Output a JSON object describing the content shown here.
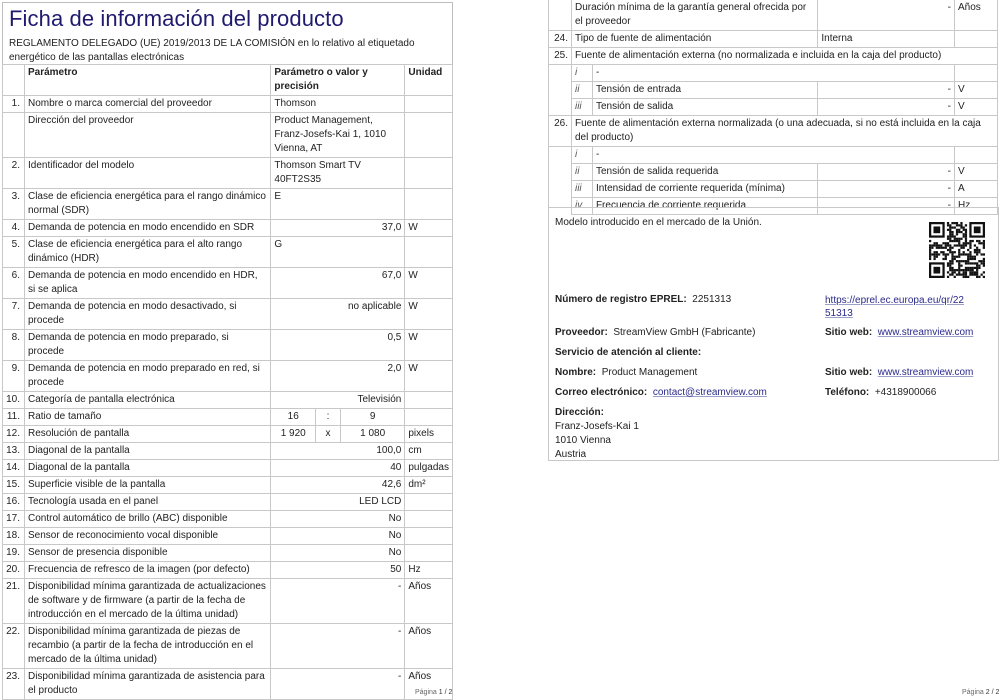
{
  "page1": {
    "title": "Ficha de información del producto",
    "subtitle": "REGLAMENTO DELEGADO (UE) 2019/2013 DE LA COMISIÓN en lo relativo al etiquetado energético de las pantallas electrónicas",
    "headers": {
      "param": "Parámetro",
      "value": "Parámetro o valor y precisión",
      "unit": "Unidad"
    },
    "rows": [
      {
        "n": "1.",
        "p": "Nombre o marca comercial del proveedor",
        "v": "Thomson",
        "u": "",
        "align": "left"
      },
      {
        "n": "",
        "p": "Dirección del proveedor",
        "v": "Product Management, Franz-Josefs-Kai 1, 1010 Vienna, AT",
        "u": "",
        "align": "left"
      },
      {
        "n": "2.",
        "p": "Identificador del modelo",
        "v": "Thomson Smart TV 40FT2S35",
        "u": "",
        "align": "left"
      },
      {
        "n": "3.",
        "p": "Clase de eficiencia energética para el rango dinámico normal (SDR)",
        "v": "E",
        "u": "",
        "align": "left"
      },
      {
        "n": "4.",
        "p": "Demanda de potencia en modo encendido en SDR",
        "v": "37,0",
        "u": "W",
        "align": "right"
      },
      {
        "n": "5.",
        "p": "Clase de eficiencia energética para el alto rango dinámico (HDR)",
        "v": "G",
        "u": "",
        "align": "left"
      },
      {
        "n": "6.",
        "p": "Demanda de potencia en modo encendido en HDR, si se aplica",
        "v": "67,0",
        "u": "W",
        "align": "right"
      },
      {
        "n": "7.",
        "p": "Demanda de potencia en modo desactivado, si procede",
        "v": "no aplicable",
        "u": "W",
        "align": "right"
      },
      {
        "n": "8.",
        "p": "Demanda de potencia en modo preparado, si procede",
        "v": "0,5",
        "u": "W",
        "align": "right"
      },
      {
        "n": "9.",
        "p": "Demanda de potencia en modo preparado en red, si procede",
        "v": "2,0",
        "u": "W",
        "align": "right"
      },
      {
        "n": "10.",
        "p": "Categoría de pantalla electrónica",
        "v": "Televisión",
        "u": "",
        "align": "right"
      },
      {
        "n": "11.",
        "p": "Ratio de tamaño",
        "parts": [
          "16",
          ":",
          "9"
        ],
        "u": ""
      },
      {
        "n": "12.",
        "p": "Resolución de pantalla",
        "parts": [
          "1 920",
          "x",
          "1 080"
        ],
        "u": "pixels"
      },
      {
        "n": "13.",
        "p": "Diagonal de la pantalla",
        "v": "100,0",
        "u": "cm",
        "align": "right"
      },
      {
        "n": "14.",
        "p": "Diagonal de la pantalla",
        "v": "40",
        "u": "pulgadas",
        "align": "right"
      },
      {
        "n": "15.",
        "p": "Superficie visible de la pantalla",
        "v": "42,6",
        "u": "dm²",
        "align": "right"
      },
      {
        "n": "16.",
        "p": "Tecnología usada en el panel",
        "v": "LED LCD",
        "u": "",
        "align": "right"
      },
      {
        "n": "17.",
        "p": "Control automático de brillo (ABC) disponible",
        "v": "No",
        "u": "",
        "align": "right"
      },
      {
        "n": "18.",
        "p": "Sensor de reconocimiento vocal disponible",
        "v": "No",
        "u": "",
        "align": "right"
      },
      {
        "n": "19.",
        "p": "Sensor de presencia disponible",
        "v": "No",
        "u": "",
        "align": "right"
      },
      {
        "n": "20.",
        "p": "Frecuencia de refresco de la imagen (por defecto)",
        "v": "50",
        "u": "Hz",
        "align": "right"
      },
      {
        "n": "21.",
        "p": "Disponibilidad mínima garantizada de actualizaciones de software y de firmware (a partir de la fecha de introducción en el mercado de la última unidad)",
        "v": "-",
        "u": "Años",
        "align": "right"
      },
      {
        "n": "22.",
        "p": "Disponibilidad mínima garantizada de piezas de recambio (a partir de la fecha de introducción en el mercado de la última unidad)",
        "v": "-",
        "u": "Años",
        "align": "right"
      },
      {
        "n": "23.",
        "p": "Disponibilidad mínima garantizada de asistencia para el producto",
        "v": "-",
        "u": "Años",
        "align": "right"
      }
    ],
    "footer": {
      "label": "Página",
      "page": "1 / 2"
    }
  },
  "page2": {
    "rows": [
      {
        "type": "row",
        "n": "",
        "p": "Duración mínima de la garantía general ofrecida por el proveedor",
        "v": "-",
        "u": "Años",
        "align": "right"
      },
      {
        "type": "row",
        "n": "24.",
        "p": "Tipo de fuente de alimentación",
        "v": "Interna",
        "u": "",
        "align": "left"
      },
      {
        "type": "span",
        "n": "25.",
        "p": "Fuente de alimentación externa (no normalizada e incluida en la caja del producto)"
      },
      {
        "type": "sub",
        "s": "i",
        "p": "-",
        "v": "",
        "u": "",
        "full": true
      },
      {
        "type": "sub",
        "s": "ii",
        "p": "Tensión de entrada",
        "v": "-",
        "u": "V"
      },
      {
        "type": "sub",
        "s": "iii",
        "p": "Tensión de salida",
        "v": "-",
        "u": "V"
      },
      {
        "type": "span",
        "n": "26.",
        "p": "Fuente de alimentación externa normalizada (o una adecuada, si no está incluida en la caja del producto)"
      },
      {
        "type": "sub",
        "s": "i",
        "p": "-",
        "v": "",
        "u": "",
        "full": true
      },
      {
        "type": "sub",
        "s": "ii",
        "p": "Tensión de salida requerida",
        "v": "-",
        "u": "V"
      },
      {
        "type": "sub",
        "s": "iii",
        "p": "Intensidad de corriente requerida (mínima)",
        "v": "-",
        "u": "A"
      },
      {
        "type": "sub",
        "s": "iv",
        "p": "Frecuencia de corriente requerida",
        "v": "-",
        "u": "Hz"
      }
    ],
    "info": {
      "market": "Modelo introducido en el mercado de la Unión.",
      "eprel_label": "Número de registro EPREL:",
      "eprel_value": "2251313",
      "eprel_url_1": "https://eprel.ec.europa.eu/qr/22",
      "eprel_url_2": "51313",
      "supplier_label": "Proveedor:",
      "supplier_value": "StreamView GmbH (Fabricante)",
      "website_label": "Sitio web:",
      "website_value": "www.streamview.com",
      "service_label": "Servicio de atención al cliente:",
      "name_label": "Nombre:",
      "name_value": "Product Management",
      "website2_label": "Sitio web:",
      "website2_value": "www.streamview.com",
      "email_label": "Correo electrónico:",
      "email_value": "contact@streamview.com",
      "phone_label": "Teléfono:",
      "phone_value": "+4318900066",
      "address_label": "Dirección:",
      "address_lines": [
        "Franz-Josefs-Kai 1",
        "1010 Vienna",
        "Austria"
      ],
      "qr_icon": "qr-code"
    },
    "footer": {
      "label": "Página",
      "page": "2 / 2"
    }
  }
}
